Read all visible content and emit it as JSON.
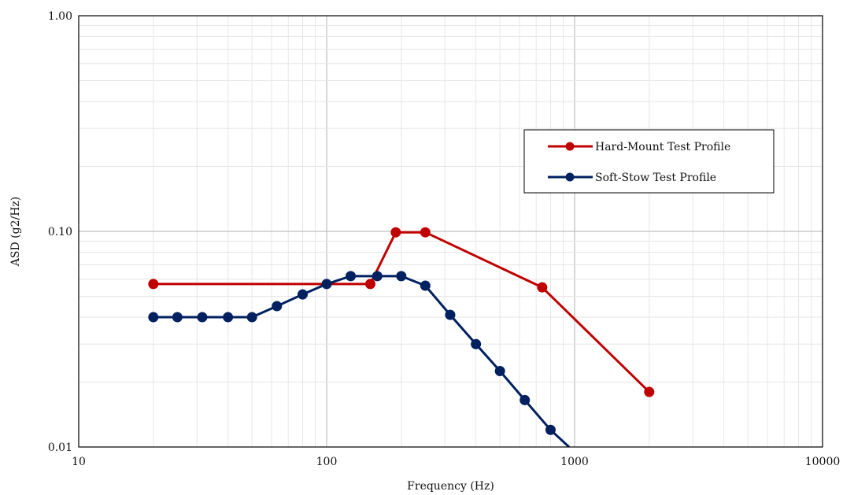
{
  "chart_data": {
    "type": "line",
    "title": "",
    "xlabel": "Frequency (Hz)",
    "ylabel": "ASD (g2/Hz)",
    "x_scale": "log",
    "y_scale": "log",
    "xlim": [
      10,
      10000
    ],
    "ylim": [
      0.01,
      1.0
    ],
    "x_ticks": [
      {
        "value": 10,
        "label": "10"
      },
      {
        "value": 100,
        "label": "100"
      },
      {
        "value": 1000,
        "label": "1000"
      },
      {
        "value": 10000,
        "label": "10000"
      }
    ],
    "y_ticks": [
      {
        "value": 0.01,
        "label": "0.01"
      },
      {
        "value": 0.1,
        "label": "0.10"
      },
      {
        "value": 1.0,
        "label": "1.00"
      }
    ],
    "grid": true,
    "legend_position": "right",
    "series": [
      {
        "name": "Hard-Mount Test Profile",
        "color": "#c00000",
        "points": [
          {
            "x": 20,
            "y": 0.057
          },
          {
            "x": 150,
            "y": 0.057
          },
          {
            "x": 190,
            "y": 0.099
          },
          {
            "x": 250,
            "y": 0.099
          },
          {
            "x": 740,
            "y": 0.055
          },
          {
            "x": 2000,
            "y": 0.018
          }
        ]
      },
      {
        "name": "Soft-Stow Test Profile",
        "color": "#002060",
        "points": [
          {
            "x": 20,
            "y": 0.04
          },
          {
            "x": 25,
            "y": 0.04
          },
          {
            "x": 31.5,
            "y": 0.04
          },
          {
            "x": 40,
            "y": 0.04
          },
          {
            "x": 50,
            "y": 0.04
          },
          {
            "x": 63,
            "y": 0.045
          },
          {
            "x": 80,
            "y": 0.051
          },
          {
            "x": 100,
            "y": 0.057
          },
          {
            "x": 125,
            "y": 0.062
          },
          {
            "x": 160,
            "y": 0.062
          },
          {
            "x": 200,
            "y": 0.062
          },
          {
            "x": 250,
            "y": 0.056
          },
          {
            "x": 315,
            "y": 0.041
          },
          {
            "x": 400,
            "y": 0.03
          },
          {
            "x": 500,
            "y": 0.0225
          },
          {
            "x": 630,
            "y": 0.0165
          },
          {
            "x": 800,
            "y": 0.012
          },
          {
            "x": 950,
            "y": 0.01
          }
        ],
        "markers_until_index": 16
      }
    ]
  }
}
